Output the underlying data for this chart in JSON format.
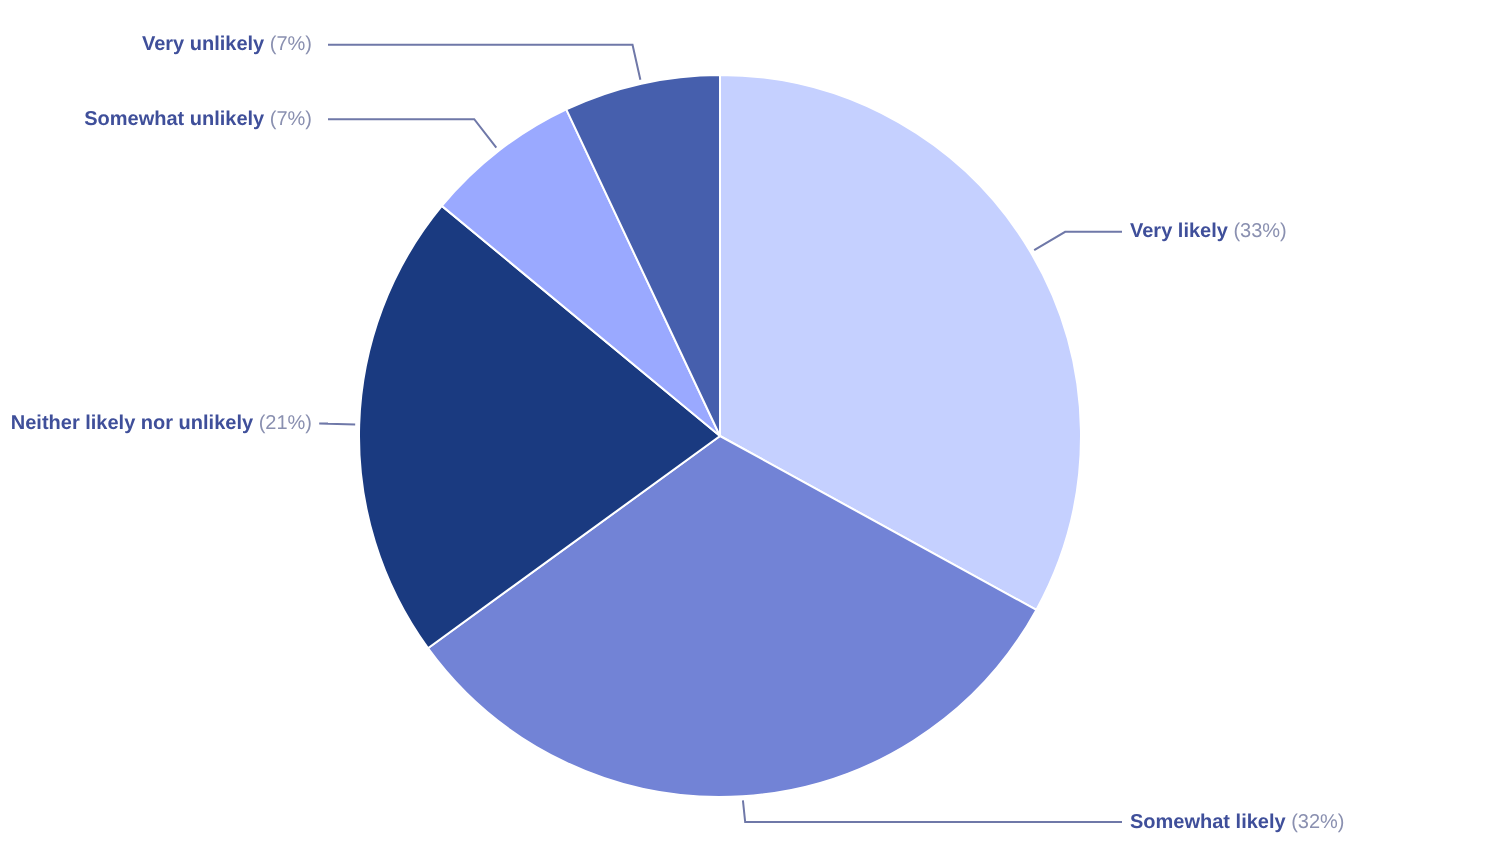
{
  "chart_data": {
    "type": "pie",
    "categories": [
      "Very likely",
      "Somewhat likely",
      "Neither likely nor unlikely",
      "Somewhat unlikely",
      "Very unlikely"
    ],
    "values": [
      33,
      32,
      21,
      7,
      7
    ],
    "colors": [
      "#c5d0ff",
      "#7283d6",
      "#1a3a80",
      "#9aa9ff",
      "#465fad"
    ],
    "value_labels": [
      "(33%)",
      "(32%)",
      "(21%)",
      "(7%)",
      "(7%)"
    ],
    "legend": false
  }
}
